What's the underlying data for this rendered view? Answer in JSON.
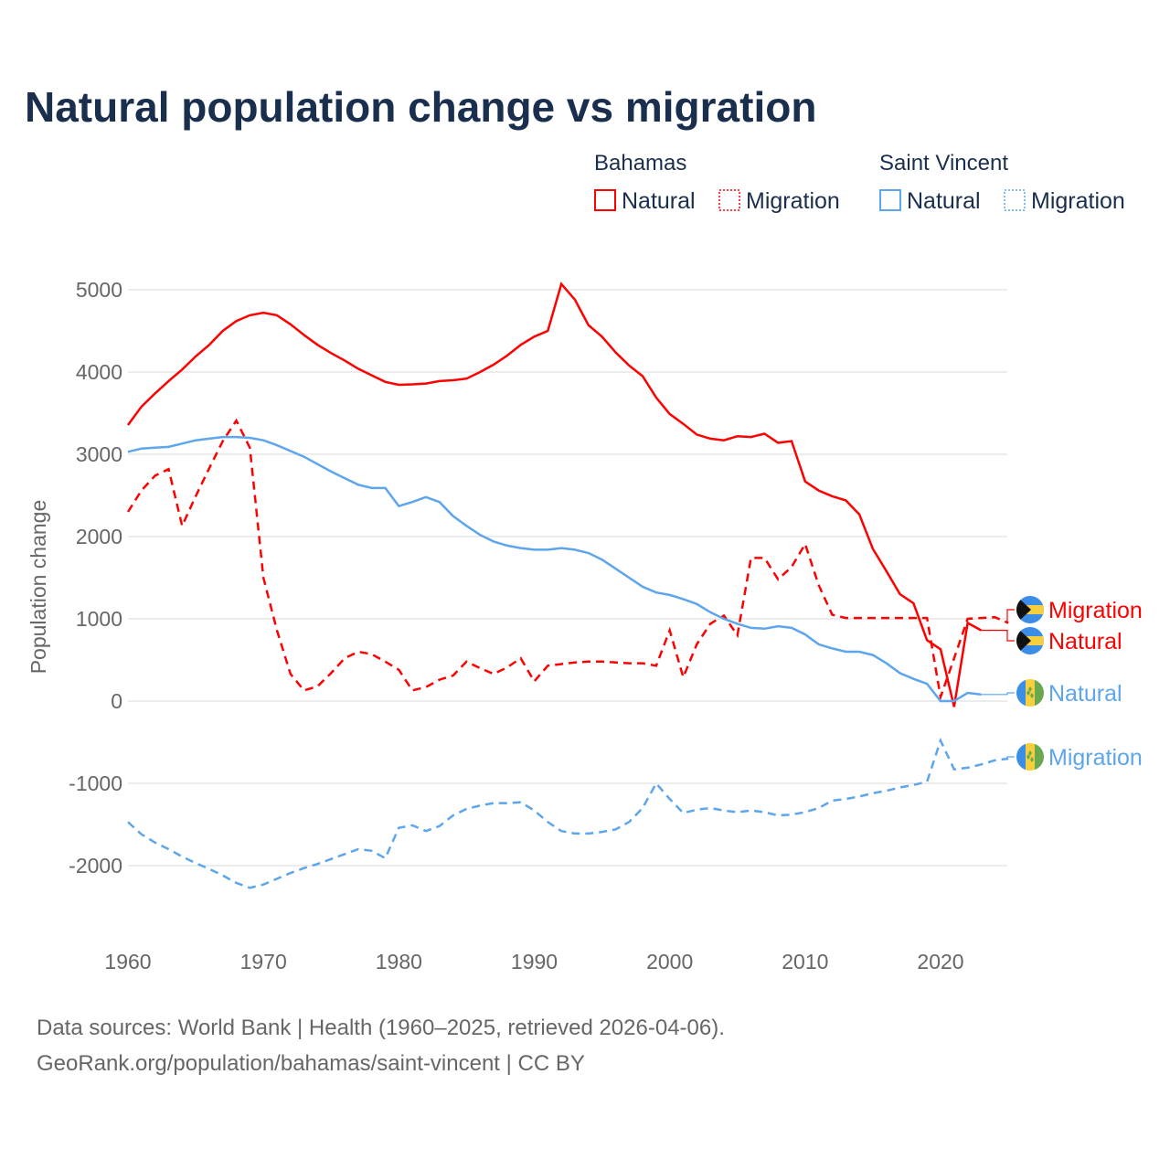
{
  "chart_data": {
    "type": "line",
    "title": "Natural population change vs migration",
    "ylabel": "Population change",
    "xlabel": "",
    "xlim": [
      1960,
      2025
    ],
    "ylim": [
      -2500,
      5500
    ],
    "xticks": [
      "1960",
      "1970",
      "1980",
      "1990",
      "2000",
      "2010",
      "2020"
    ],
    "yticks": [
      "-2000",
      "-1000",
      "0",
      "1000",
      "2000",
      "3000",
      "4000",
      "5000"
    ],
    "grid": true,
    "legend": {
      "groups": [
        {
          "name": "Bahamas",
          "items": [
            "Natural",
            "Migration"
          ]
        },
        {
          "name": "Saint Vincent",
          "items": [
            "Natural",
            "Migration"
          ]
        }
      ]
    },
    "start_year": 1960,
    "series": [
      {
        "name": "Bahamas Natural",
        "country": "Bahamas",
        "kind": "Natural",
        "color": "#ff0000",
        "dashed": false,
        "label": "Natural",
        "values": [
          3356,
          3580,
          3740,
          3890,
          4030,
          4190,
          4330,
          4500,
          4620,
          4690,
          4720,
          4690,
          4580,
          4450,
          4330,
          4230,
          4140,
          4040,
          3960,
          3880,
          3845,
          3850,
          3860,
          3890,
          3900,
          3920,
          4000,
          4090,
          4200,
          4330,
          4430,
          4500,
          5070,
          4880,
          4570,
          4430,
          4240,
          4080,
          3950,
          3690,
          3490,
          3370,
          3240,
          3190,
          3170,
          3220,
          3210,
          3250,
          3140,
          3160,
          2670,
          2560,
          2490,
          2440,
          2270,
          1850,
          1580,
          1300,
          1190,
          740,
          630,
          -70,
          950,
          860
        ]
      },
      {
        "name": "Bahamas Migration",
        "country": "Bahamas",
        "kind": "Migration",
        "color": "#ff0000",
        "dashed": true,
        "label": "Migration",
        "values": [
          2300,
          2560,
          2740,
          2820,
          2130,
          2490,
          2830,
          3160,
          3410,
          3080,
          1500,
          860,
          330,
          130,
          180,
          340,
          520,
          600,
          570,
          480,
          380,
          130,
          170,
          260,
          310,
          480,
          400,
          330,
          410,
          520,
          240,
          430,
          450,
          470,
          480,
          480,
          470,
          460,
          460,
          430,
          860,
          290,
          690,
          940,
          1040,
          800,
          1740,
          1740,
          1480,
          1630,
          1910,
          1410,
          1050,
          1010,
          1010,
          1010,
          1010,
          1010,
          1010,
          1010,
          50,
          520,
          1000,
          1010,
          1020,
          950
        ]
      },
      {
        "name": "Saint Vincent Natural",
        "country": "Saint Vincent",
        "kind": "Natural",
        "color": "#5da5ec",
        "dashed": false,
        "label": "Natural",
        "values": [
          3030,
          3070,
          3080,
          3090,
          3130,
          3170,
          3190,
          3210,
          3210,
          3200,
          3170,
          3110,
          3040,
          2970,
          2880,
          2790,
          2710,
          2630,
          2590,
          2590,
          2370,
          2420,
          2480,
          2420,
          2250,
          2130,
          2020,
          1940,
          1890,
          1860,
          1840,
          1840,
          1860,
          1840,
          1800,
          1720,
          1610,
          1500,
          1390,
          1320,
          1290,
          1240,
          1180,
          1080,
          1000,
          940,
          890,
          880,
          910,
          890,
          810,
          690,
          640,
          600,
          600,
          560,
          460,
          340,
          270,
          210,
          0,
          0,
          100,
          80
        ]
      },
      {
        "name": "Saint Vincent Migration",
        "country": "Saint Vincent",
        "kind": "Migration",
        "color": "#5da5ec",
        "dashed": true,
        "label": "Migration",
        "values": [
          -1470,
          -1620,
          -1720,
          -1800,
          -1890,
          -1970,
          -2040,
          -2120,
          -2210,
          -2270,
          -2230,
          -2160,
          -2090,
          -2030,
          -1980,
          -1920,
          -1860,
          -1800,
          -1820,
          -1910,
          -1540,
          -1510,
          -1580,
          -1520,
          -1390,
          -1310,
          -1270,
          -1240,
          -1240,
          -1230,
          -1330,
          -1470,
          -1580,
          -1610,
          -1610,
          -1590,
          -1560,
          -1470,
          -1300,
          -1000,
          -1190,
          -1360,
          -1320,
          -1300,
          -1330,
          -1350,
          -1330,
          -1350,
          -1390,
          -1380,
          -1350,
          -1300,
          -1210,
          -1190,
          -1160,
          -1120,
          -1090,
          -1050,
          -1020,
          -980,
          -480,
          -830,
          -810,
          -770,
          -720,
          -700
        ]
      }
    ]
  },
  "footer": {
    "line1": "Data sources: World Bank | Health (1960–2025, retrieved 2026-04-06).",
    "line2": "GeoRank.org/population/bahamas/saint-vincent | CC BY"
  }
}
